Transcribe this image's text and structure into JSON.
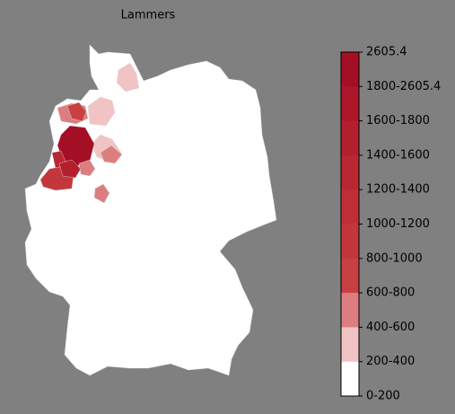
{
  "title": "Lammers",
  "legend": {
    "labels": [
      "2605.4",
      "1800-2605.4",
      "1600-1800",
      "1400-1600",
      "1200-1400",
      "1000-1200",
      "800-1000",
      "600-800",
      "400-600",
      "200-400",
      "0-200"
    ],
    "colors": [
      "#a50f25",
      "#ad1729",
      "#b31f2d",
      "#b92733",
      "#be2f37",
      "#c3373c",
      "#c84041",
      "#dc7e80",
      "#f1c3c3",
      "#ffffff"
    ]
  }
}
